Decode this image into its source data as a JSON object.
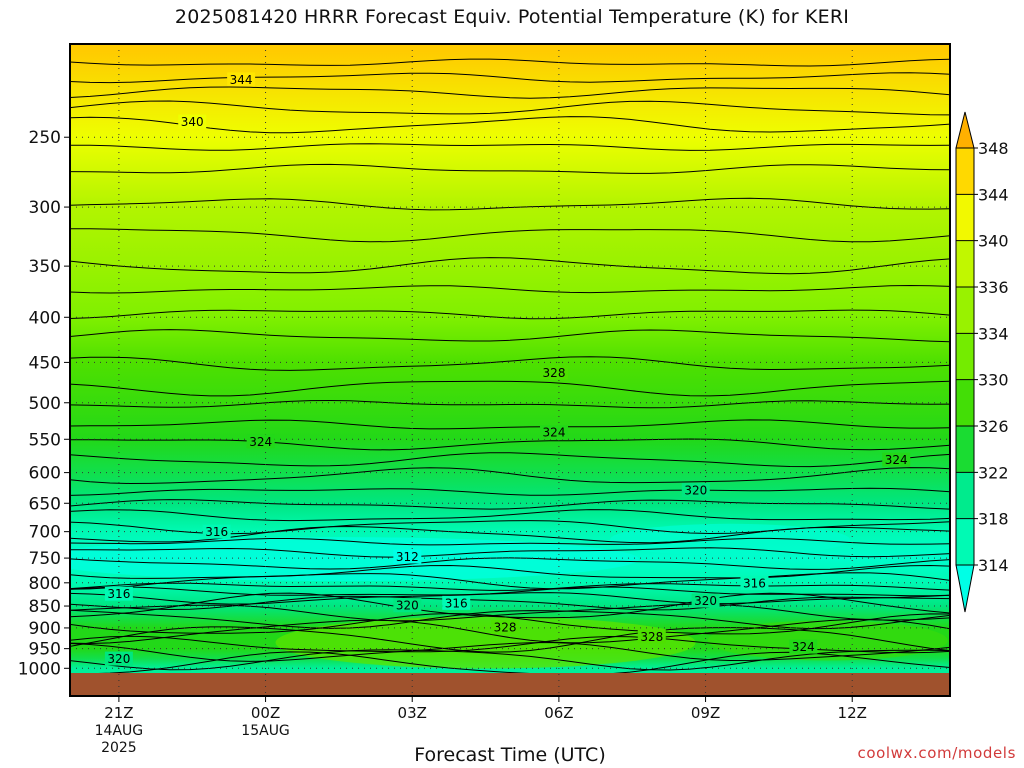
{
  "chart_data": {
    "type": "heatmap",
    "title": "2025081420 HRRR Forecast Equiv. Potential Temperature (K) for KERI",
    "xlabel": "Forecast Time (UTC)",
    "credit": "coolwx.com/models",
    "y_axis": {
      "scale": "log",
      "inverted": true,
      "range": [
        1000,
        200
      ],
      "ticks": [
        250,
        300,
        350,
        400,
        450,
        500,
        550,
        600,
        650,
        700,
        750,
        800,
        850,
        900,
        950,
        1000
      ]
    },
    "x_axis": {
      "range_hours": [
        -1,
        17
      ],
      "ticks": [
        {
          "hour": 0,
          "label": "21Z",
          "sub1": "14AUG",
          "sub2": "2025"
        },
        {
          "hour": 3,
          "label": "00Z",
          "sub1": "15AUG",
          "sub2": ""
        },
        {
          "hour": 6,
          "label": "03Z",
          "sub1": "",
          "sub2": ""
        },
        {
          "hour": 9,
          "label": "06Z",
          "sub1": "",
          "sub2": ""
        },
        {
          "hour": 12,
          "label": "09Z",
          "sub1": "",
          "sub2": ""
        },
        {
          "hour": 15,
          "label": "12Z",
          "sub1": "",
          "sub2": ""
        }
      ]
    },
    "colorbar": {
      "labels": [
        314,
        318,
        322,
        326,
        330,
        334,
        336,
        340,
        344,
        348
      ],
      "extend": "both"
    },
    "grid": "dotted",
    "profile": [
      {
        "p": 1000,
        "theta_e": 318
      },
      {
        "p": 975,
        "theta_e": 322
      },
      {
        "p": 950,
        "theta_e": 324
      },
      {
        "p": 900,
        "theta_e": 324
      },
      {
        "p": 850,
        "theta_e": 320
      },
      {
        "p": 800,
        "theta_e": 316
      },
      {
        "p": 750,
        "theta_e": 314
      },
      {
        "p": 700,
        "theta_e": 316
      },
      {
        "p": 650,
        "theta_e": 320
      },
      {
        "p": 600,
        "theta_e": 322
      },
      {
        "p": 550,
        "theta_e": 324
      },
      {
        "p": 500,
        "theta_e": 326
      },
      {
        "p": 450,
        "theta_e": 328
      },
      {
        "p": 400,
        "theta_e": 332
      },
      {
        "p": 350,
        "theta_e": 334
      },
      {
        "p": 300,
        "theta_e": 336
      },
      {
        "p": 250,
        "theta_e": 340
      },
      {
        "p": 200,
        "theta_e": 346
      }
    ],
    "contour_labels": [
      {
        "value": 344,
        "hour": 2.5,
        "p": 215
      },
      {
        "value": 340,
        "hour": 1.5,
        "p": 240
      },
      {
        "value": 328,
        "hour": 8.9,
        "p": 462
      },
      {
        "value": 324,
        "hour": 8.9,
        "p": 540
      },
      {
        "value": 324,
        "hour": 2.9,
        "p": 553
      },
      {
        "value": 324,
        "hour": 15.9,
        "p": 580
      },
      {
        "value": 320,
        "hour": 11.8,
        "p": 628
      },
      {
        "value": 316,
        "hour": 2.0,
        "p": 700
      },
      {
        "value": 312,
        "hour": 5.9,
        "p": 747
      },
      {
        "value": 316,
        "hour": 13.0,
        "p": 800
      },
      {
        "value": 316,
        "hour": 0.0,
        "p": 823
      },
      {
        "value": 320,
        "hour": 5.9,
        "p": 848
      },
      {
        "value": 316,
        "hour": 6.9,
        "p": 843
      },
      {
        "value": 320,
        "hour": 12.0,
        "p": 838
      },
      {
        "value": 328,
        "hour": 7.9,
        "p": 898
      },
      {
        "value": 328,
        "hour": 10.9,
        "p": 920
      },
      {
        "value": 324,
        "hour": 14.0,
        "p": 945
      },
      {
        "value": 320,
        "hour": 0.0,
        "p": 975
      }
    ]
  }
}
